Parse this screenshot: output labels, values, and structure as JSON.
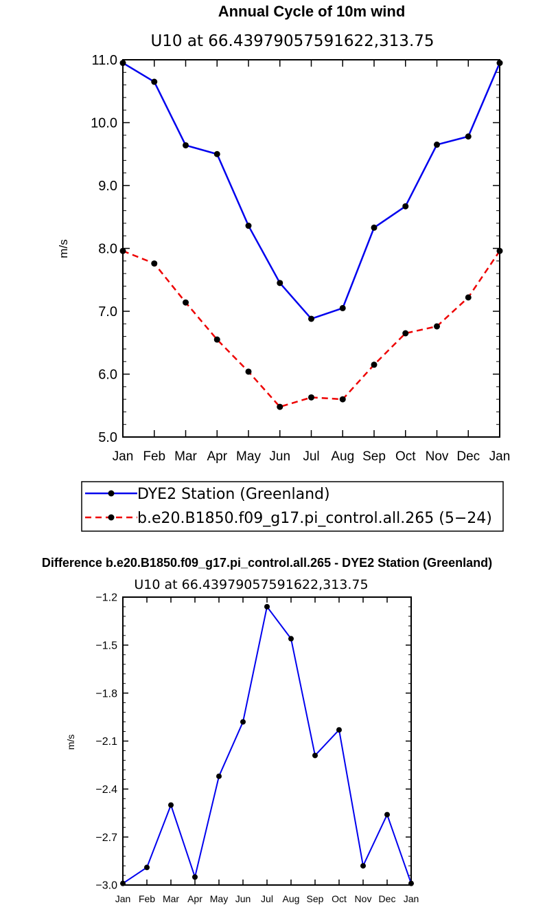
{
  "chart_data": [
    {
      "type": "line",
      "title": "Annual Cycle of 10m wind",
      "subtitle": "U10 at 66.43979057591622,313.75",
      "xlabel": "",
      "ylabel": "m/s",
      "ylim": [
        5.0,
        11.0
      ],
      "yticks": [
        "5.0",
        "6.0",
        "7.0",
        "8.0",
        "9.0",
        "10.0",
        "11.0"
      ],
      "categories": [
        "Jan",
        "Feb",
        "Mar",
        "Apr",
        "May",
        "Jun",
        "Jul",
        "Aug",
        "Sep",
        "Oct",
        "Nov",
        "Dec",
        "Jan"
      ],
      "series": [
        {
          "name": "DYE2 Station (Greenland)",
          "color": "#0000ee",
          "dash": "solid",
          "values": [
            10.95,
            10.65,
            9.64,
            9.5,
            8.36,
            7.45,
            6.88,
            7.05,
            8.33,
            8.67,
            9.65,
            9.78,
            10.95
          ]
        },
        {
          "name": "b.e20.B1850.f09_g17.pi_control.all.265 (5−24)",
          "color": "#ee0000",
          "dash": "dashed",
          "values": [
            7.96,
            7.76,
            7.14,
            6.55,
            6.04,
            5.48,
            5.63,
            5.6,
            6.15,
            6.65,
            6.76,
            7.22,
            7.96
          ]
        }
      ],
      "legend": "bottom"
    },
    {
      "type": "line",
      "title": "Difference b.e20.B1850.f09_g17.pi_control.all.265 - DYE2 Station (Greenland)",
      "subtitle": "U10 at 66.43979057591622,313.75",
      "xlabel": "",
      "ylabel": "m/s",
      "ylim": [
        -3.0,
        -1.2
      ],
      "yticks": [
        "−3.0",
        "−2.7",
        "−2.4",
        "−2.1",
        "−1.8",
        "−1.5",
        "−1.2"
      ],
      "categories": [
        "Jan",
        "Feb",
        "Mar",
        "Apr",
        "May",
        "Jun",
        "Jul",
        "Aug",
        "Sep",
        "Oct",
        "Nov",
        "Dec",
        "Jan"
      ],
      "series": [
        {
          "name": "Difference",
          "color": "#0000ee",
          "dash": "solid",
          "values": [
            -2.99,
            -2.89,
            -2.5,
            -2.95,
            -2.32,
            -1.98,
            -1.26,
            -1.46,
            -2.19,
            -2.03,
            -2.88,
            -2.56,
            -2.99
          ]
        }
      ]
    }
  ]
}
